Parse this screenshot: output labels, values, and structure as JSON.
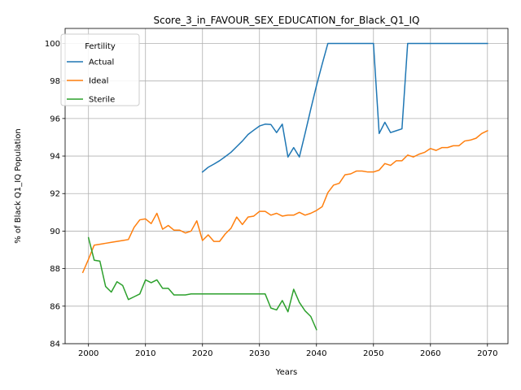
{
  "chart_data": {
    "type": "line",
    "title": "Score_3_in_FAVOUR_SEX_EDUCATION_for_Black_Q1_IQ",
    "xlabel": "Years",
    "ylabel": "% of Black Q1_IQ Population",
    "xlim": [
      1995.9,
      2073.6
    ],
    "ylim": [
      84,
      100.8
    ],
    "xticks": [
      2000,
      2010,
      2020,
      2030,
      2040,
      2050,
      2060,
      2070
    ],
    "yticks": [
      84,
      86,
      88,
      90,
      92,
      94,
      96,
      98,
      100
    ],
    "grid": true,
    "legend": {
      "title": "Fertility",
      "position": "top-left"
    },
    "series": [
      {
        "name": "Actual",
        "color": "#1f77b4",
        "points": [
          [
            2020,
            93.15
          ],
          [
            2021,
            93.4
          ],
          [
            2022,
            93.57
          ],
          [
            2023,
            93.75
          ],
          [
            2024,
            93.97
          ],
          [
            2025,
            94.2
          ],
          [
            2026,
            94.5
          ],
          [
            2027,
            94.8
          ],
          [
            2028,
            95.15
          ],
          [
            2029,
            95.38
          ],
          [
            2030,
            95.6
          ],
          [
            2031,
            95.7
          ],
          [
            2032,
            95.68
          ],
          [
            2033,
            95.25
          ],
          [
            2034,
            95.7
          ],
          [
            2035,
            93.95
          ],
          [
            2036,
            94.45
          ],
          [
            2037,
            93.95
          ],
          [
            2038,
            95.2
          ],
          [
            2039,
            96.5
          ],
          [
            2040,
            97.75
          ],
          [
            2041,
            98.9
          ],
          [
            2042,
            100
          ],
          [
            2043,
            100
          ],
          [
            2044,
            100
          ],
          [
            2045,
            100
          ],
          [
            2046,
            100
          ],
          [
            2047,
            100
          ],
          [
            2048,
            100
          ],
          [
            2049,
            100
          ],
          [
            2050,
            100
          ],
          [
            2051,
            95.2
          ],
          [
            2052,
            95.8
          ],
          [
            2053,
            95.25
          ],
          [
            2054,
            95.35
          ],
          [
            2055,
            95.45
          ],
          [
            2056,
            100
          ],
          [
            2057,
            100
          ],
          [
            2058,
            100
          ],
          [
            2059,
            100
          ],
          [
            2060,
            100
          ],
          [
            2061,
            100
          ],
          [
            2062,
            100
          ],
          [
            2063,
            100
          ],
          [
            2064,
            100
          ],
          [
            2065,
            100
          ],
          [
            2066,
            100
          ],
          [
            2067,
            100
          ],
          [
            2068,
            100
          ],
          [
            2069,
            100
          ],
          [
            2070,
            100
          ]
        ]
      },
      {
        "name": "Ideal",
        "color": "#ff7f0e",
        "points": [
          [
            1999,
            87.8
          ],
          [
            2000,
            88.5
          ],
          [
            2001,
            89.25
          ],
          [
            2002,
            89.3
          ],
          [
            2003,
            89.35
          ],
          [
            2004,
            89.4
          ],
          [
            2005,
            89.45
          ],
          [
            2006,
            89.5
          ],
          [
            2007,
            89.55
          ],
          [
            2008,
            90.2
          ],
          [
            2009,
            90.6
          ],
          [
            2010,
            90.65
          ],
          [
            2011,
            90.4
          ],
          [
            2012,
            90.95
          ],
          [
            2013,
            90.1
          ],
          [
            2014,
            90.3
          ],
          [
            2015,
            90.05
          ],
          [
            2016,
            90.05
          ],
          [
            2017,
            89.9
          ],
          [
            2018,
            90.0
          ],
          [
            2019,
            90.55
          ],
          [
            2020,
            89.5
          ],
          [
            2021,
            89.8
          ],
          [
            2022,
            89.45
          ],
          [
            2023,
            89.45
          ],
          [
            2024,
            89.85
          ],
          [
            2025,
            90.15
          ],
          [
            2026,
            90.75
          ],
          [
            2027,
            90.35
          ],
          [
            2028,
            90.75
          ],
          [
            2029,
            90.8
          ],
          [
            2030,
            91.05
          ],
          [
            2031,
            91.05
          ],
          [
            2032,
            90.85
          ],
          [
            2033,
            90.95
          ],
          [
            2034,
            90.8
          ],
          [
            2035,
            90.85
          ],
          [
            2036,
            90.85
          ],
          [
            2037,
            91.0
          ],
          [
            2038,
            90.85
          ],
          [
            2039,
            90.95
          ],
          [
            2040,
            91.1
          ],
          [
            2041,
            91.3
          ],
          [
            2042,
            92.05
          ],
          [
            2043,
            92.45
          ],
          [
            2044,
            92.55
          ],
          [
            2045,
            93.0
          ],
          [
            2046,
            93.05
          ],
          [
            2047,
            93.2
          ],
          [
            2048,
            93.2
          ],
          [
            2049,
            93.15
          ],
          [
            2050,
            93.15
          ],
          [
            2051,
            93.25
          ],
          [
            2052,
            93.6
          ],
          [
            2053,
            93.5
          ],
          [
            2054,
            93.75
          ],
          [
            2055,
            93.75
          ],
          [
            2056,
            94.05
          ],
          [
            2057,
            93.95
          ],
          [
            2058,
            94.1
          ],
          [
            2059,
            94.2
          ],
          [
            2060,
            94.4
          ],
          [
            2061,
            94.3
          ],
          [
            2062,
            94.45
          ],
          [
            2063,
            94.45
          ],
          [
            2064,
            94.55
          ],
          [
            2065,
            94.55
          ],
          [
            2066,
            94.8
          ],
          [
            2067,
            94.85
          ],
          [
            2068,
            94.95
          ],
          [
            2069,
            95.2
          ],
          [
            2070,
            95.35
          ]
        ]
      },
      {
        "name": "Sterile",
        "color": "#2ca02c",
        "points": [
          [
            2000,
            89.65
          ],
          [
            2001,
            88.45
          ],
          [
            2002,
            88.4
          ],
          [
            2003,
            87.05
          ],
          [
            2004,
            86.75
          ],
          [
            2005,
            87.3
          ],
          [
            2006,
            87.1
          ],
          [
            2007,
            86.35
          ],
          [
            2008,
            86.5
          ],
          [
            2009,
            86.65
          ],
          [
            2010,
            87.4
          ],
          [
            2011,
            87.25
          ],
          [
            2012,
            87.4
          ],
          [
            2013,
            86.95
          ],
          [
            2014,
            86.95
          ],
          [
            2015,
            86.6
          ],
          [
            2016,
            86.6
          ],
          [
            2017,
            86.6
          ],
          [
            2018,
            86.65
          ],
          [
            2019,
            86.65
          ],
          [
            2020,
            86.65
          ],
          [
            2021,
            86.65
          ],
          [
            2022,
            86.65
          ],
          [
            2023,
            86.65
          ],
          [
            2024,
            86.65
          ],
          [
            2025,
            86.65
          ],
          [
            2026,
            86.65
          ],
          [
            2027,
            86.65
          ],
          [
            2028,
            86.65
          ],
          [
            2029,
            86.65
          ],
          [
            2030,
            86.65
          ],
          [
            2031,
            86.65
          ],
          [
            2032,
            85.9
          ],
          [
            2033,
            85.8
          ],
          [
            2034,
            86.3
          ],
          [
            2035,
            85.7
          ],
          [
            2036,
            86.9
          ],
          [
            2037,
            86.2
          ],
          [
            2038,
            85.75
          ],
          [
            2039,
            85.45
          ],
          [
            2040,
            84.75
          ]
        ]
      }
    ]
  }
}
